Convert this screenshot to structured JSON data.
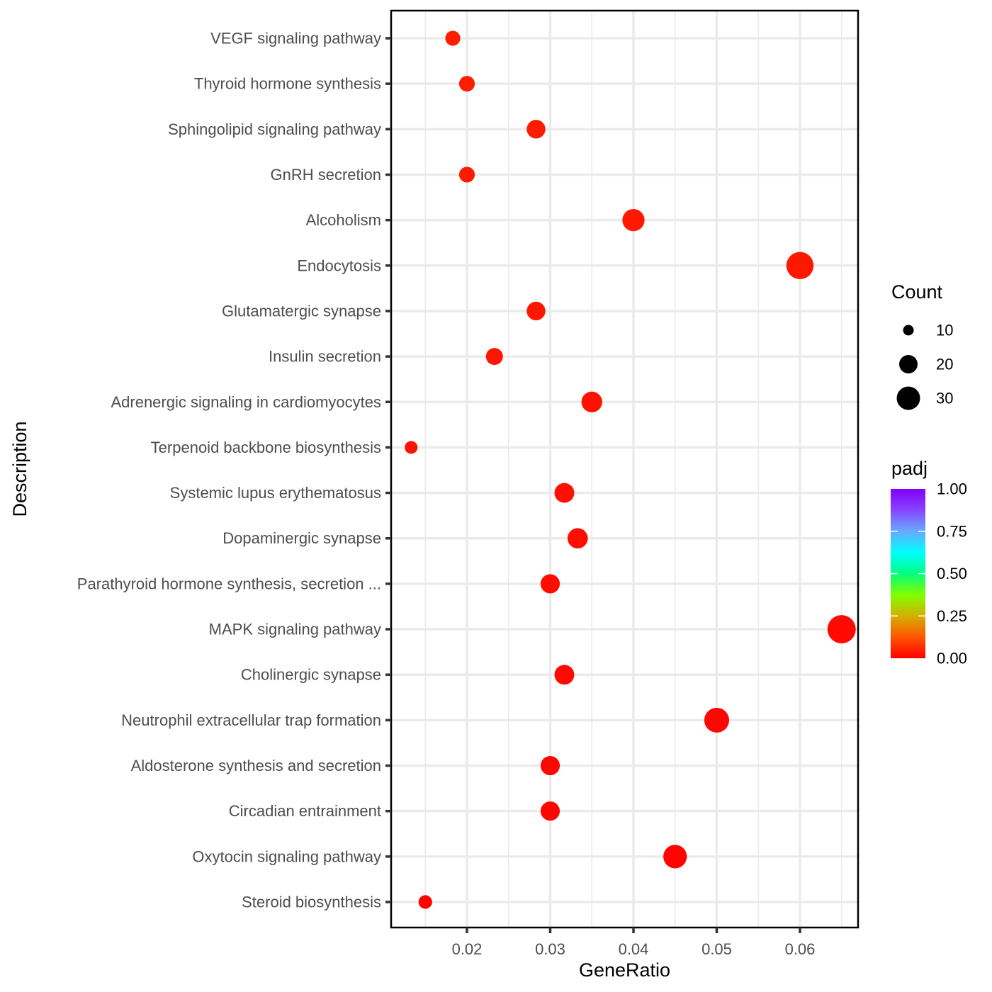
{
  "chart_data": {
    "type": "scatter",
    "subtype": "dot-plot",
    "xlabel": "GeneRatio",
    "ylabel": "Description",
    "xlim": [
      0.0105,
      0.0672
    ],
    "xticks": [
      0.02,
      0.03,
      0.04,
      0.05,
      0.06
    ],
    "xtick_labels": [
      "0.02",
      "0.03",
      "0.04",
      "0.05",
      "0.06"
    ],
    "grid": true,
    "categories": [
      "VEGF signaling pathway",
      "Thyroid hormone synthesis",
      "Sphingolipid signaling pathway",
      "GnRH secretion",
      "Alcoholism",
      "Endocytosis",
      "Glutamatergic synapse",
      "Insulin secretion",
      "Adrenergic signaling in cardiomyocytes",
      "Terpenoid backbone biosynthesis",
      "Systemic lupus erythematosus",
      "Dopaminergic synapse",
      "Parathyroid hormone synthesis, secretion ...",
      "MAPK signaling pathway",
      "Cholinergic synapse",
      "Neutrophil extracellular trap formation",
      "Aldosterone synthesis and secretion",
      "Circadian entrainment",
      "Oxytocin signaling pathway",
      "Steroid biosynthesis"
    ],
    "gene_ratio": [
      0.0183,
      0.02,
      0.0283,
      0.02,
      0.04,
      0.06,
      0.0283,
      0.0233,
      0.035,
      0.0133,
      0.0317,
      0.0333,
      0.03,
      0.065,
      0.0317,
      0.05,
      0.03,
      0.03,
      0.045,
      0.015
    ],
    "count": [
      11,
      12,
      17,
      12,
      24,
      36,
      17,
      14,
      21,
      8,
      19,
      20,
      18,
      39,
      19,
      30,
      18,
      18,
      27,
      9
    ],
    "padj": [
      0.045,
      0.043,
      0.04,
      0.04,
      0.037,
      0.035,
      0.033,
      0.032,
      0.028,
      0.026,
      0.022,
      0.02,
      0.017,
      0.015,
      0.013,
      0.011,
      0.009,
      0.008,
      0.006,
      0.002
    ],
    "legend": {
      "placement": "right",
      "size": {
        "title": "Count",
        "values": [
          10,
          20,
          30
        ],
        "labels": [
          "10",
          "20",
          "30"
        ]
      },
      "color": {
        "title": "padj",
        "range": [
          0,
          1
        ],
        "ticks": [
          0.0,
          0.25,
          0.5,
          0.75,
          1.0
        ],
        "labels": [
          "0.00",
          "0.25",
          "0.50",
          "0.75",
          "1.00"
        ],
        "gradient_stops": [
          "#ff0000",
          "#ff5500",
          "#d4b000",
          "#80ff00",
          "#00ff80",
          "#00ffff",
          "#66aaff",
          "#8844ff",
          "#8000ff"
        ]
      }
    }
  }
}
